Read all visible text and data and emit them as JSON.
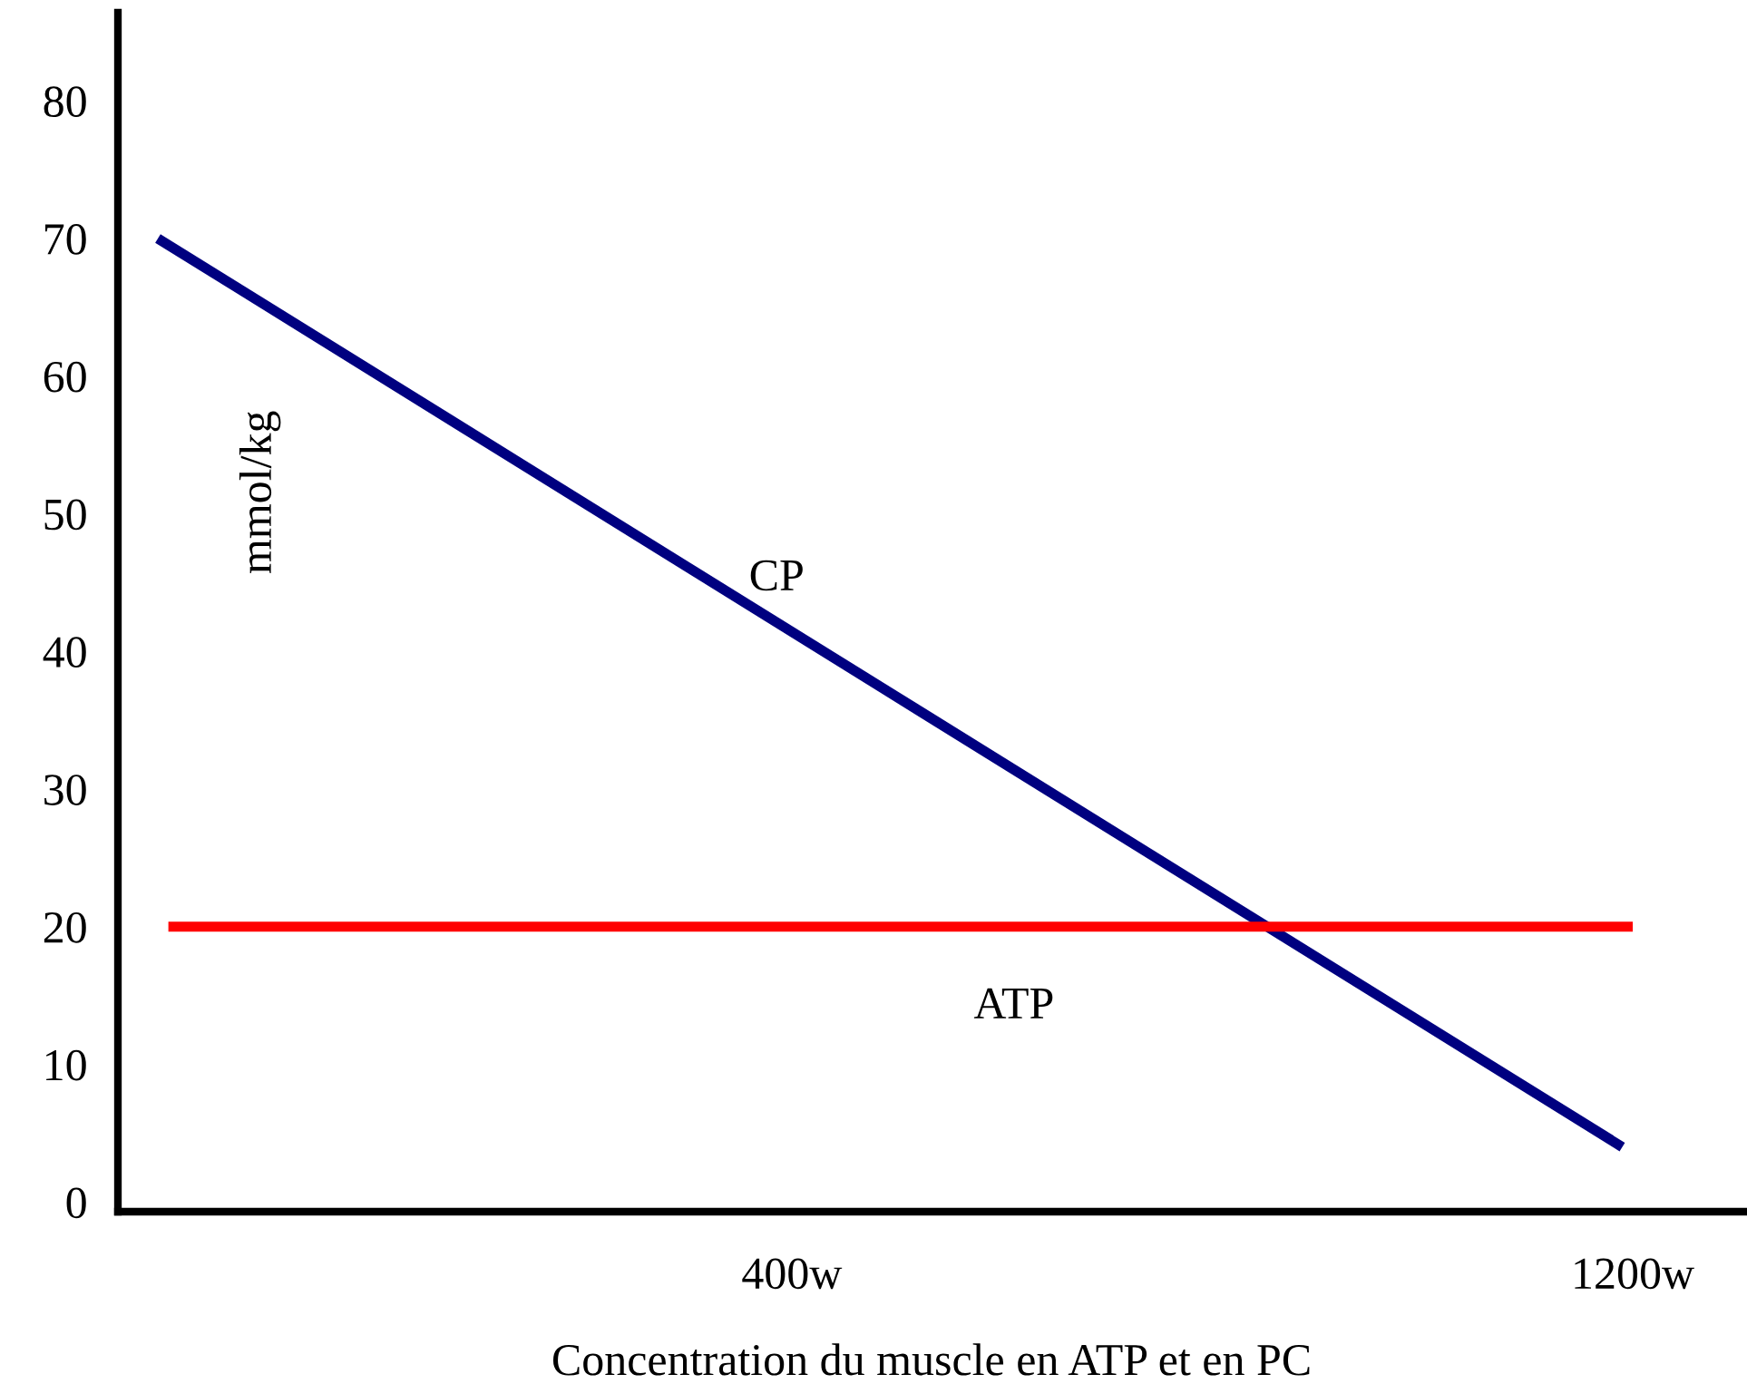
{
  "chart_data": {
    "type": "line",
    "xlabel": "Concentration du muscle en ATP et en PC",
    "ylabel": "mmol/kg",
    "xlim": [
      -241,
      1307
    ],
    "ylim": [
      -0.7,
      86.4
    ],
    "xticks": [
      {
        "value": 400,
        "label": "400w"
      },
      {
        "value": 1200,
        "label": "1200w"
      }
    ],
    "yticks": [
      0,
      10,
      20,
      30,
      40,
      50,
      60,
      70,
      80
    ],
    "series": [
      {
        "name": "CP",
        "color": "#000080",
        "x": [
          -203,
          1190
        ],
        "values": [
          70,
          4
        ]
      },
      {
        "name": "ATP",
        "color": "#ff0000",
        "x": [
          -193,
          1200
        ],
        "values": [
          20,
          20
        ]
      }
    ],
    "grid": false,
    "legend": false,
    "marker": "none",
    "line_style": "solid"
  }
}
